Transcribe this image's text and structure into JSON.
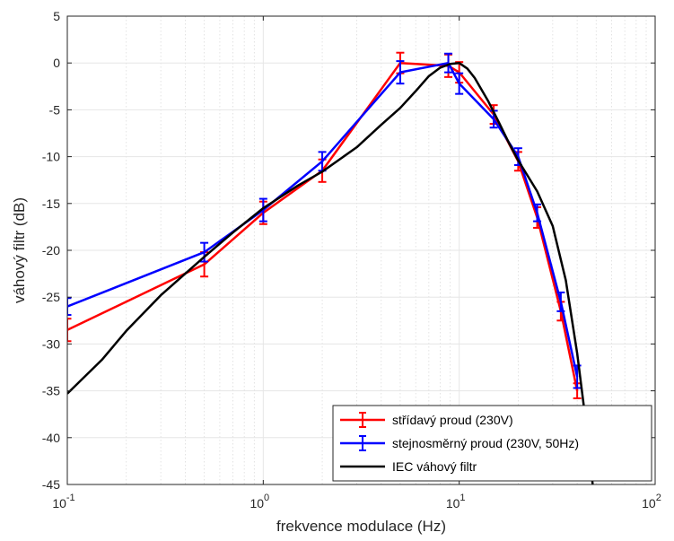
{
  "chart_data": {
    "type": "line",
    "xscale": "log",
    "xlim": [
      0.1,
      100
    ],
    "ylim": [
      -45,
      5
    ],
    "grid": true,
    "minor_grid_x": true,
    "xlabel": "frekvence modulace (Hz)",
    "ylabel": "váhový filtr (dB)",
    "x_ticks": [
      {
        "value": 0.1,
        "base": "10",
        "exp": "-1"
      },
      {
        "value": 1,
        "base": "10",
        "exp": "0"
      },
      {
        "value": 10,
        "base": "10",
        "exp": "1"
      },
      {
        "value": 100,
        "base": "10",
        "exp": "2"
      }
    ],
    "y_ticks": [
      "5",
      "0",
      "-5",
      "-10",
      "-15",
      "-20",
      "-25",
      "-30",
      "-35",
      "-40",
      "-45"
    ],
    "legend_position": "bottom-right",
    "series": [
      {
        "name": "střídavý proud (230V)",
        "color": "#ff0000",
        "errorbars": true,
        "x": [
          0.1,
          0.5,
          1,
          2,
          5,
          8.8,
          10,
          15,
          20,
          25,
          33,
          40
        ],
        "y": [
          -28.5,
          -21.5,
          -16,
          -11.5,
          0,
          -0.3,
          -1,
          -5.5,
          -10.5,
          -16.5,
          -26.5,
          -35
        ],
        "err": [
          1.2,
          1.3,
          1.2,
          1.2,
          1.1,
          1.2,
          1.1,
          1.0,
          1.0,
          1.1,
          1.0,
          0.8
        ]
      },
      {
        "name": "stejnosměrný proud (230V, 50Hz)",
        "color": "#0000ff",
        "errorbars": true,
        "x": [
          0.1,
          0.5,
          1,
          2,
          5,
          8.8,
          10,
          15,
          20,
          25,
          33,
          40
        ],
        "y": [
          -26,
          -20.2,
          -15.7,
          -10.5,
          -1,
          0,
          -2.2,
          -6,
          -10,
          -16,
          -25.5,
          -33.5
        ],
        "err": [
          0.9,
          1.0,
          1.2,
          1.0,
          1.2,
          1.0,
          1.1,
          0.9,
          0.9,
          0.9,
          1.0,
          1.2
        ]
      },
      {
        "name": "IEC váhový filtr",
        "color": "#000000",
        "errorbars": false,
        "x": [
          0.1,
          0.15,
          0.2,
          0.3,
          0.5,
          0.7,
          1,
          1.5,
          2,
          3,
          4,
          5,
          6,
          7,
          8,
          9,
          10,
          11,
          12,
          14,
          16,
          18,
          20,
          25,
          30,
          35,
          40,
          45,
          48
        ],
        "y": [
          -35.3,
          -31.7,
          -28.6,
          -24.8,
          -20.7,
          -18.1,
          -15.5,
          -13.1,
          -11.6,
          -9.0,
          -6.6,
          -4.8,
          -3.0,
          -1.4,
          -0.5,
          -0.1,
          0,
          -0.6,
          -1.6,
          -4.0,
          -6.4,
          -8.6,
          -10.4,
          -13.7,
          -17.4,
          -23.2,
          -31.0,
          -39.5,
          -45
        ]
      }
    ]
  },
  "colors": {
    "background": "#ffffff",
    "grid": "#e6e6e6",
    "axis": "#262626"
  }
}
